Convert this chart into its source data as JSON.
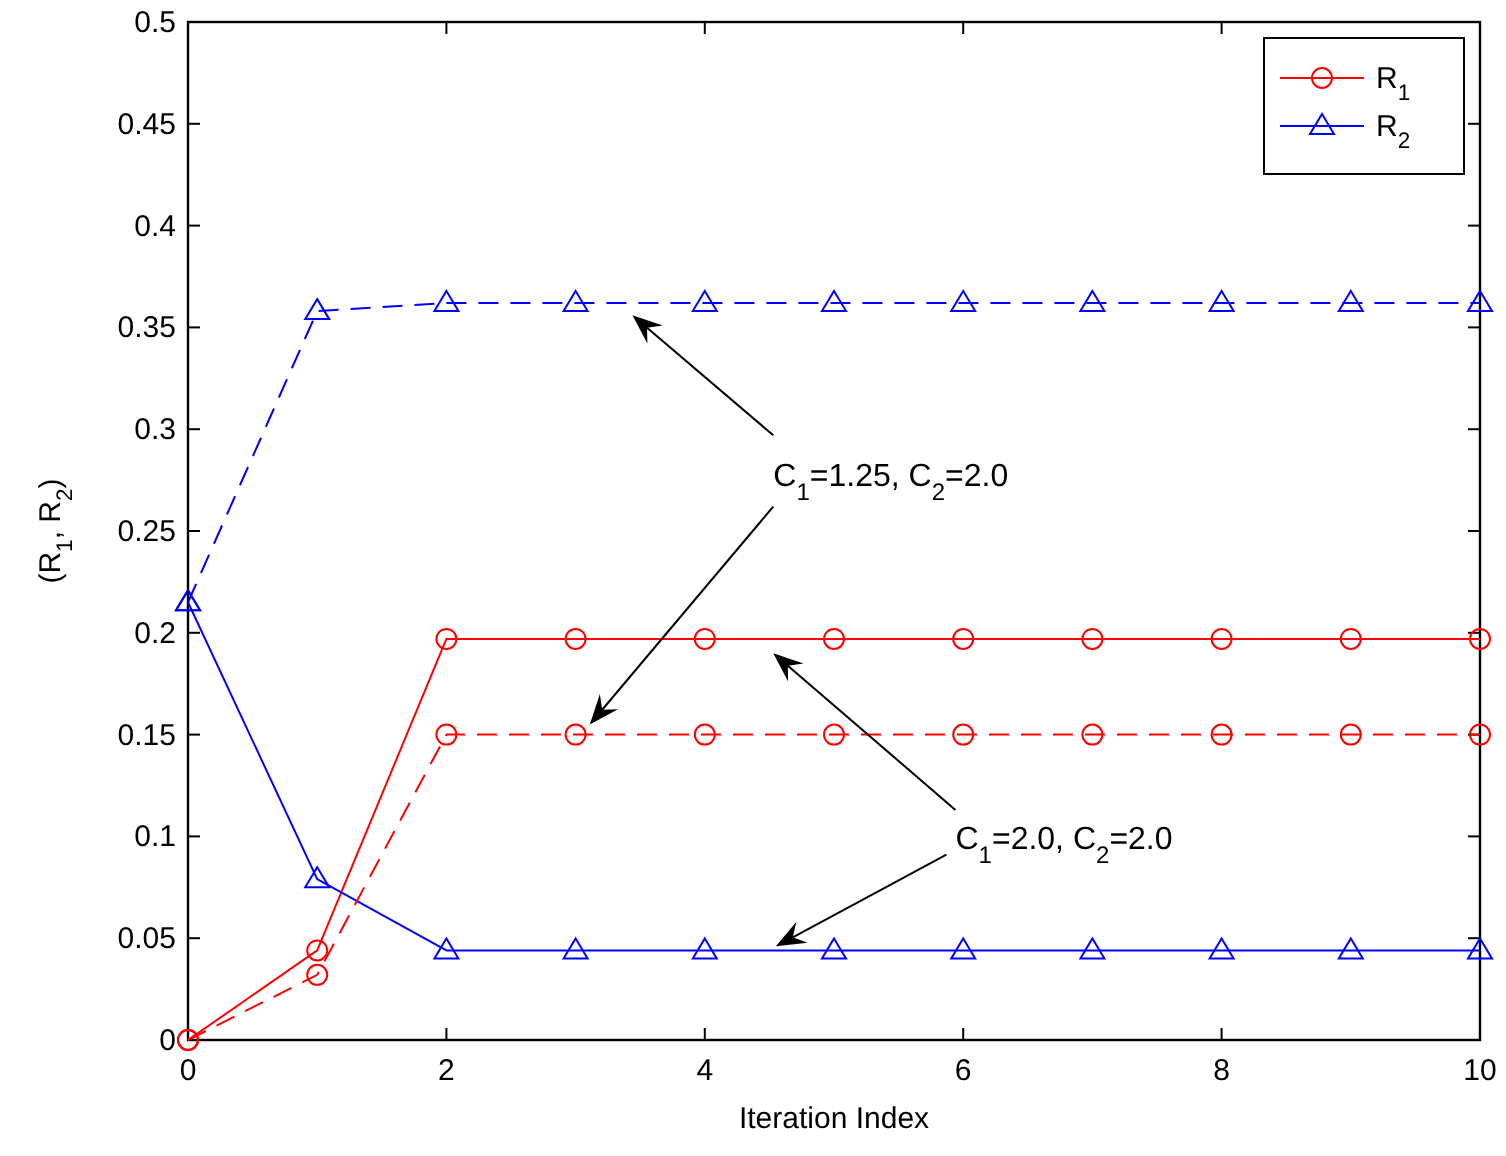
{
  "chart_data": {
    "type": "line",
    "xlabel": "Iteration Index",
    "ylabel": "(R$_{1}$, R$_{2}$)",
    "x": [
      0,
      1,
      2,
      3,
      4,
      5,
      6,
      7,
      8,
      9,
      10
    ],
    "series": [
      {
        "name": "R$_{1}$",
        "color": "#ff0000",
        "marker": "circle",
        "line_style": "solid",
        "values": [
          0,
          0.044,
          0.197,
          0.197,
          0.197,
          0.197,
          0.197,
          0.197,
          0.197,
          0.197,
          0.197
        ]
      },
      {
        "name": "R$_{2}$",
        "color": "#0000ff",
        "marker": "triangle",
        "line_style": "solid",
        "values": [
          0.215,
          0.079,
          0.044,
          0.044,
          0.044,
          0.044,
          0.044,
          0.044,
          0.044,
          0.044,
          0.044
        ]
      },
      {
        "color": "#ff0000",
        "marker": "circle",
        "line_style": "dashed",
        "values": [
          0,
          0.032,
          0.15,
          0.15,
          0.15,
          0.15,
          0.15,
          0.15,
          0.15,
          0.15,
          0.15
        ]
      },
      {
        "color": "#0000ff",
        "marker": "triangle",
        "line_style": "dashed",
        "values": [
          0.215,
          0.358,
          0.362,
          0.362,
          0.362,
          0.362,
          0.362,
          0.362,
          0.362,
          0.362,
          0.362
        ]
      }
    ],
    "annotations": [
      "C$_{1}$=1.25, C$_{2}$=2.0",
      "C$_{1}$=2.0, C$_{2}$=2.0"
    ],
    "xlim": [
      0,
      10
    ],
    "xticks": [
      0,
      2,
      4,
      6,
      8,
      10
    ],
    "ylim": [
      0,
      0.5
    ],
    "yticks": [
      0,
      0.05,
      0.1,
      0.15,
      0.2,
      0.25,
      0.3,
      0.35,
      0.4,
      0.45,
      0.5
    ],
    "grid": false,
    "legend": "top right"
  }
}
